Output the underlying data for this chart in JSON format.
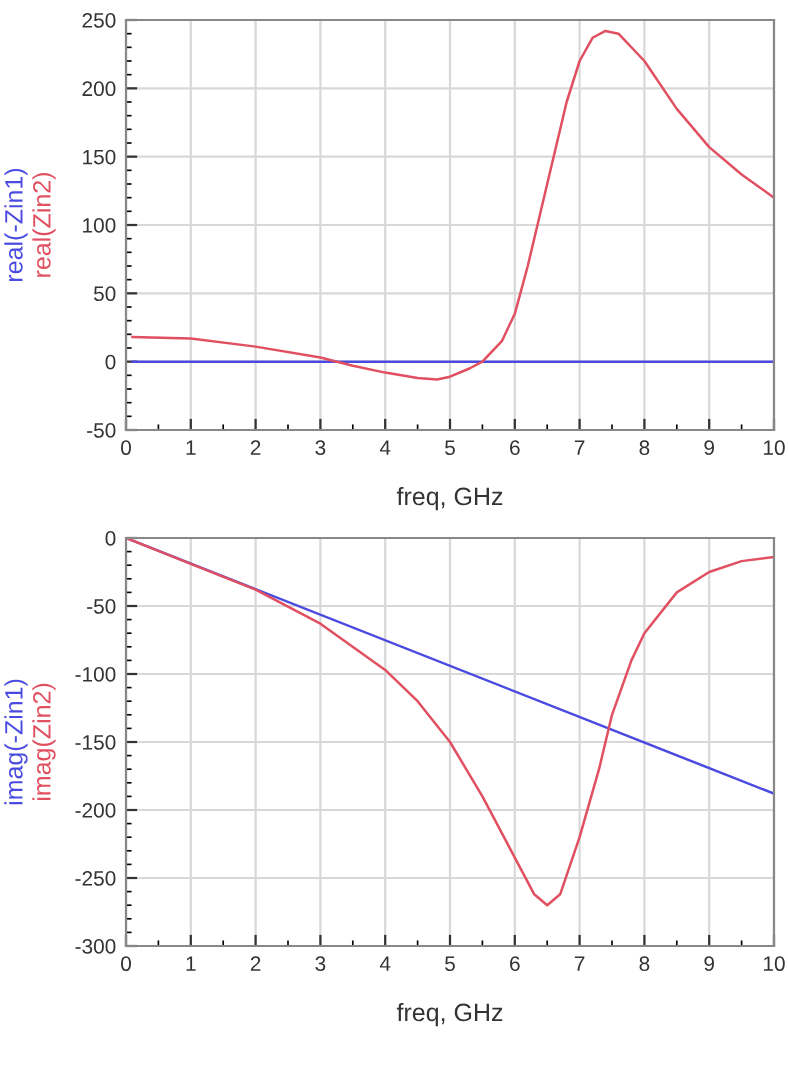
{
  "chart_data": [
    {
      "type": "line",
      "xlabel": "freq, GHz",
      "xlim": [
        0,
        10
      ],
      "xticks": [
        0,
        1,
        2,
        3,
        4,
        5,
        6,
        7,
        8,
        9,
        10
      ],
      "ylim": [
        -50,
        250
      ],
      "yticks": [
        -50,
        0,
        50,
        100,
        150,
        200,
        250
      ],
      "grid": true,
      "legend": false,
      "series": [
        {
          "name": "real(-Zin1)",
          "color": "#4a4ae0",
          "x": [
            0.1,
            10
          ],
          "values": [
            0,
            0
          ]
        },
        {
          "name": "real(Zin2)",
          "color": "#e05060",
          "x": [
            0.1,
            1,
            2,
            3,
            3.5,
            4,
            4.5,
            4.8,
            5,
            5.3,
            5.5,
            5.8,
            6,
            6.2,
            6.5,
            6.8,
            7,
            7.2,
            7.4,
            7.6,
            8,
            8.5,
            9,
            9.5,
            10
          ],
          "values": [
            18,
            17,
            11,
            3,
            -3,
            -8,
            -12,
            -13,
            -11,
            -5,
            0,
            15,
            35,
            70,
            130,
            190,
            220,
            237,
            242,
            240,
            220,
            185,
            157,
            137,
            120
          ]
        }
      ]
    },
    {
      "type": "line",
      "xlabel": "freq, GHz",
      "xlim": [
        0,
        10
      ],
      "xticks": [
        0,
        1,
        2,
        3,
        4,
        5,
        6,
        7,
        8,
        9,
        10
      ],
      "ylim": [
        -300,
        0
      ],
      "yticks": [
        -300,
        -250,
        -200,
        -150,
        -100,
        -50,
        0
      ],
      "grid": true,
      "legend": false,
      "series": [
        {
          "name": "imag(-Zin1)",
          "color": "#4a4ae0",
          "x": [
            0,
            10
          ],
          "values": [
            0,
            -188
          ]
        },
        {
          "name": "imag(Zin2)",
          "color": "#e05060",
          "x": [
            0,
            1,
            2,
            3,
            4,
            4.5,
            5,
            5.5,
            6,
            6.3,
            6.5,
            6.7,
            7,
            7.3,
            7.5,
            7.8,
            8,
            8.5,
            9,
            9.5,
            10
          ],
          "values": [
            0,
            -19,
            -38,
            -63,
            -97,
            -120,
            -150,
            -190,
            -235,
            -262,
            -270,
            -262,
            -220,
            -170,
            -130,
            -90,
            -70,
            -40,
            -25,
            -17,
            -14
          ]
        }
      ]
    }
  ]
}
